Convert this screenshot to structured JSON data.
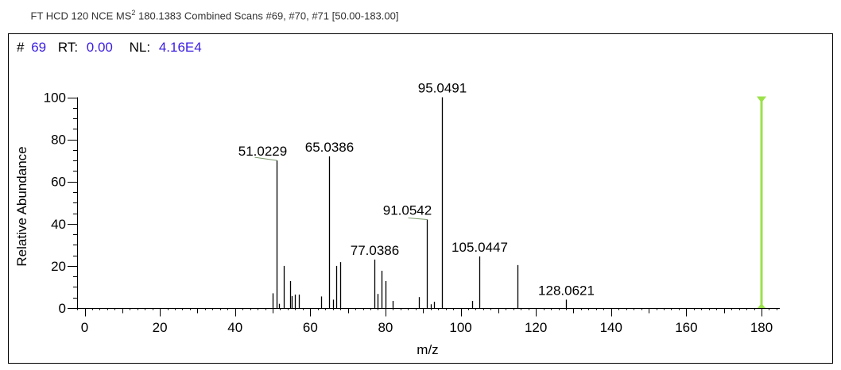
{
  "header": {
    "title_prefix": "FT HCD 120 NCE MS",
    "title_superscript": "2",
    "title_suffix": " 180.1383 Combined Scans #69, #70, #71 [50.00-183.00]"
  },
  "scan_info": {
    "hash": "#",
    "scan": "69",
    "rt_label": "RT:",
    "rt": "0.00",
    "nl_label": "NL:",
    "nl": "4.16E4"
  },
  "colors": {
    "value_text": "#3a1ee0",
    "marker": "#9be24a",
    "peak": "#000000"
  },
  "chart_data": {
    "type": "bar",
    "title": "FT HCD 120 NCE MS2 180.1383 Combined Scans #69, #70, #71 [50.00-183.00]",
    "xlabel": "m/z",
    "ylabel": "Relative Abundance",
    "xlim": [
      0,
      180
    ],
    "ylim": [
      0,
      100
    ],
    "xticks": [
      0,
      20,
      40,
      60,
      80,
      100,
      120,
      140,
      160,
      180
    ],
    "yticks": [
      0,
      20,
      40,
      60,
      80,
      100
    ],
    "peaks": [
      {
        "mz": 50.0,
        "intensity": 7
      },
      {
        "mz": 51.0229,
        "intensity": 70,
        "label": "51.0229"
      },
      {
        "mz": 51.7,
        "intensity": 2
      },
      {
        "mz": 52.9,
        "intensity": 20
      },
      {
        "mz": 54.7,
        "intensity": 12.8
      },
      {
        "mz": 55.1,
        "intensity": 5.7
      },
      {
        "mz": 55.9,
        "intensity": 6.4
      },
      {
        "mz": 56.9,
        "intensity": 6.4
      },
      {
        "mz": 62.9,
        "intensity": 5.5
      },
      {
        "mz": 65.0386,
        "intensity": 72,
        "label": "65.0386"
      },
      {
        "mz": 66.0,
        "intensity": 4
      },
      {
        "mz": 67.0,
        "intensity": 20
      },
      {
        "mz": 68.0,
        "intensity": 21.8
      },
      {
        "mz": 77.0386,
        "intensity": 23,
        "label": "77.0386"
      },
      {
        "mz": 77.9,
        "intensity": 6.7
      },
      {
        "mz": 78.9,
        "intensity": 17.7
      },
      {
        "mz": 80.0,
        "intensity": 12.8
      },
      {
        "mz": 81.9,
        "intensity": 3.4
      },
      {
        "mz": 88.9,
        "intensity": 5.2
      },
      {
        "mz": 91.0542,
        "intensity": 42,
        "label": "91.0542"
      },
      {
        "mz": 92.0,
        "intensity": 1.8
      },
      {
        "mz": 92.9,
        "intensity": 3
      },
      {
        "mz": 95.0491,
        "intensity": 100,
        "label": "95.0491"
      },
      {
        "mz": 103.0,
        "intensity": 3.4
      },
      {
        "mz": 105.0447,
        "intensity": 24.5,
        "label": "105.0447"
      },
      {
        "mz": 115.0,
        "intensity": 20.4
      },
      {
        "mz": 128.0621,
        "intensity": 4,
        "label": "128.0621"
      }
    ],
    "precursor_marker": {
      "mz": 180.1383
    }
  }
}
